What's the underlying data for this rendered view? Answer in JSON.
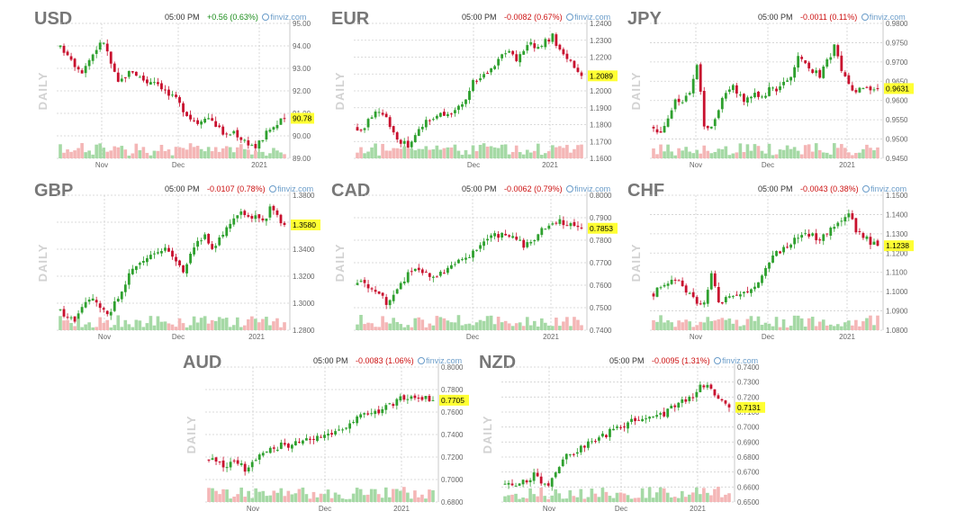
{
  "page": {
    "panels": [
      {
        "symbol": "USD",
        "time": "05:00 PM",
        "change": "+0.56 (0.63%)",
        "direction": "up",
        "brand": "finviz.com",
        "period": "DAILY",
        "last": "90.78"
      },
      {
        "symbol": "EUR",
        "time": "05:00 PM",
        "change": "-0.0082 (0.67%)",
        "direction": "down",
        "brand": "finviz.com",
        "period": "DAILY",
        "last": "1.2089"
      },
      {
        "symbol": "JPY",
        "time": "05:00 PM",
        "change": "-0.0011 (0.11%)",
        "direction": "down",
        "brand": "finviz.com",
        "period": "DAILY",
        "last": "0.9631"
      },
      {
        "symbol": "GBP",
        "time": "05:00 PM",
        "change": "-0.0107 (0.78%)",
        "direction": "down",
        "brand": "finviz.com",
        "period": "DAILY",
        "last": "1.3580"
      },
      {
        "symbol": "CAD",
        "time": "05:00 PM",
        "change": "-0.0062 (0.79%)",
        "direction": "down",
        "brand": "finviz.com",
        "period": "DAILY",
        "last": "0.7853"
      },
      {
        "symbol": "CHF",
        "time": "05:00 PM",
        "change": "-0.0043 (0.38%)",
        "direction": "down",
        "brand": "finviz.com",
        "period": "DAILY",
        "last": "1.1238"
      },
      {
        "symbol": "AUD",
        "time": "05:00 PM",
        "change": "-0.0083 (1.06%)",
        "direction": "down",
        "brand": "finviz.com",
        "period": "DAILY",
        "last": "0.7705"
      },
      {
        "symbol": "NZD",
        "time": "05:00 PM",
        "change": "-0.0095 (1.31%)",
        "direction": "down",
        "brand": "finviz.com",
        "period": "DAILY",
        "last": "0.7131"
      }
    ]
  },
  "colors": {
    "up": "#2ea02e",
    "down": "#c8102e",
    "volume_up": "#a5d9a5",
    "volume_down": "#f4b6b6",
    "grid": "#d0d0d0",
    "highlight": "#ffff33"
  },
  "chart_data": [
    {
      "type": "candlestick",
      "symbol": "USD",
      "ylim": [
        89.0,
        95.0
      ],
      "y_ticks": [
        "95.00",
        "94.00",
        "93.00",
        "92.00",
        "91.00",
        "90.00",
        "89.00"
      ],
      "x_ticks": [
        "Nov",
        "Dec",
        "2021"
      ],
      "close_path": [
        93.9,
        93.7,
        93.2,
        92.9,
        93.4,
        93.9,
        94.2,
        93.2,
        92.3,
        92.7,
        92.9,
        92.6,
        92.4,
        92.5,
        92.2,
        91.8,
        91.6,
        91.2,
        90.8,
        90.6,
        90.9,
        90.7,
        90.3,
        90.0,
        90.2,
        89.9,
        89.7,
        89.5,
        89.9,
        90.3,
        90.5,
        90.78
      ],
      "last": "90.78"
    },
    {
      "type": "candlestick",
      "symbol": "EUR",
      "ylim": [
        1.16,
        1.24
      ],
      "y_ticks": [
        "1.2400",
        "1.2300",
        "1.2200",
        "1.2100",
        "1.2000",
        "1.1900",
        "1.1800",
        "1.1700",
        "1.1600"
      ],
      "x_ticks": [
        "Dec",
        "2021"
      ],
      "close_path": [
        1.178,
        1.179,
        1.186,
        1.188,
        1.184,
        1.176,
        1.17,
        1.168,
        1.172,
        1.18,
        1.183,
        1.185,
        1.187,
        1.188,
        1.19,
        1.195,
        1.205,
        1.208,
        1.212,
        1.215,
        1.22,
        1.223,
        1.218,
        1.225,
        1.228,
        1.226,
        1.23,
        1.232,
        1.225,
        1.22,
        1.215,
        1.2089
      ],
      "last": "1.2089"
    },
    {
      "type": "candlestick",
      "symbol": "JPY",
      "ylim": [
        0.945,
        0.98
      ],
      "y_ticks": [
        "0.9800",
        "0.9750",
        "0.9700",
        "0.9650",
        "0.9600",
        "0.9550",
        "0.9500",
        "0.9450"
      ],
      "x_ticks": [
        "Nov",
        "Dec",
        "2021"
      ],
      "close_path": [
        0.953,
        0.952,
        0.956,
        0.96,
        0.959,
        0.962,
        0.97,
        0.953,
        0.954,
        0.958,
        0.962,
        0.964,
        0.961,
        0.96,
        0.962,
        0.961,
        0.963,
        0.962,
        0.964,
        0.966,
        0.971,
        0.969,
        0.968,
        0.966,
        0.97,
        0.974,
        0.968,
        0.964,
        0.962,
        0.964,
        0.962,
        0.9631
      ],
      "last": "0.9631"
    },
    {
      "type": "candlestick",
      "symbol": "GBP",
      "ylim": [
        1.28,
        1.38
      ],
      "y_ticks": [
        "1.3800",
        "1.3600",
        "1.3400",
        "1.3200",
        "1.3000",
        "1.2800"
      ],
      "x_ticks": [
        "Nov",
        "Dec",
        "2021"
      ],
      "close_path": [
        1.295,
        1.29,
        1.288,
        1.295,
        1.305,
        1.3,
        1.293,
        1.295,
        1.305,
        1.315,
        1.325,
        1.33,
        1.333,
        1.335,
        1.34,
        1.338,
        1.33,
        1.325,
        1.335,
        1.345,
        1.35,
        1.342,
        1.348,
        1.355,
        1.365,
        1.37,
        1.362,
        1.366,
        1.36,
        1.37,
        1.365,
        1.358
      ],
      "last": "1.3580"
    },
    {
      "type": "candlestick",
      "symbol": "CAD",
      "ylim": [
        0.74,
        0.8
      ],
      "y_ticks": [
        "0.8000",
        "0.7900",
        "0.7800",
        "0.7700",
        "0.7600",
        "0.7500",
        "0.7400"
      ],
      "x_ticks": [
        "Dec",
        "2021"
      ],
      "close_path": [
        0.76,
        0.761,
        0.759,
        0.757,
        0.752,
        0.755,
        0.76,
        0.765,
        0.768,
        0.766,
        0.763,
        0.764,
        0.766,
        0.768,
        0.77,
        0.772,
        0.775,
        0.778,
        0.78,
        0.782,
        0.783,
        0.782,
        0.781,
        0.778,
        0.78,
        0.783,
        0.785,
        0.786,
        0.788,
        0.786,
        0.787,
        0.7853
      ],
      "last": "0.7853"
    },
    {
      "type": "candlestick",
      "symbol": "CHF",
      "ylim": [
        1.08,
        1.15
      ],
      "y_ticks": [
        "1.1500",
        "1.1400",
        "1.1300",
        "1.1200",
        "1.1100",
        "1.1000",
        "1.0900",
        "1.0800"
      ],
      "x_ticks": [
        "Nov",
        "Dec",
        "2021"
      ],
      "close_path": [
        1.099,
        1.102,
        1.105,
        1.106,
        1.103,
        1.098,
        1.093,
        1.095,
        1.11,
        1.095,
        1.096,
        1.098,
        1.1,
        1.099,
        1.102,
        1.108,
        1.115,
        1.12,
        1.123,
        1.126,
        1.128,
        1.13,
        1.129,
        1.127,
        1.13,
        1.133,
        1.138,
        1.14,
        1.132,
        1.128,
        1.126,
        1.1238
      ],
      "last": "1.1238"
    },
    {
      "type": "candlestick",
      "symbol": "AUD",
      "ylim": [
        0.68,
        0.8
      ],
      "y_ticks": [
        "0.8000",
        "0.7800",
        "0.7600",
        "0.7400",
        "0.7200",
        "0.7000",
        "0.6800"
      ],
      "x_ticks": [
        "Nov",
        "Dec",
        "2021"
      ],
      "close_path": [
        0.718,
        0.715,
        0.712,
        0.714,
        0.713,
        0.71,
        0.715,
        0.72,
        0.725,
        0.728,
        0.73,
        0.729,
        0.732,
        0.734,
        0.736,
        0.738,
        0.74,
        0.742,
        0.745,
        0.748,
        0.752,
        0.756,
        0.758,
        0.76,
        0.762,
        0.765,
        0.77,
        0.772,
        0.775,
        0.774,
        0.773,
        0.7705
      ],
      "last": "0.7705"
    },
    {
      "type": "candlestick",
      "symbol": "NZD",
      "ylim": [
        0.65,
        0.74
      ],
      "y_ticks": [
        "0.7400",
        "0.7300",
        "0.7200",
        "0.7100",
        "0.7000",
        "0.6900",
        "0.6800",
        "0.6700",
        "0.6600",
        "0.6500"
      ],
      "x_ticks": [
        "Nov",
        "Dec",
        "2021"
      ],
      "close_path": [
        0.662,
        0.66,
        0.663,
        0.665,
        0.668,
        0.664,
        0.661,
        0.67,
        0.678,
        0.682,
        0.685,
        0.687,
        0.69,
        0.693,
        0.695,
        0.698,
        0.7,
        0.703,
        0.705,
        0.706,
        0.708,
        0.71,
        0.709,
        0.712,
        0.715,
        0.718,
        0.72,
        0.726,
        0.728,
        0.723,
        0.718,
        0.7131
      ],
      "last": "0.7131"
    }
  ]
}
